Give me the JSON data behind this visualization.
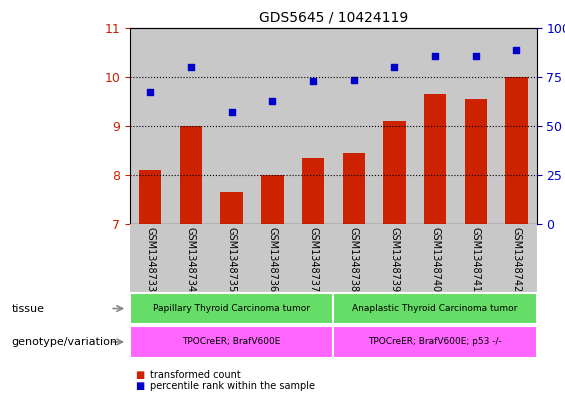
{
  "title": "GDS5645 / 10424119",
  "samples": [
    "GSM1348733",
    "GSM1348734",
    "GSM1348735",
    "GSM1348736",
    "GSM1348737",
    "GSM1348738",
    "GSM1348739",
    "GSM1348740",
    "GSM1348741",
    "GSM1348742"
  ],
  "bar_values": [
    8.1,
    9.0,
    7.65,
    8.0,
    8.35,
    8.45,
    9.1,
    9.65,
    9.55,
    10.0
  ],
  "scatter_values": [
    9.68,
    10.2,
    9.28,
    9.5,
    9.92,
    9.93,
    10.2,
    10.42,
    10.42,
    10.55
  ],
  "bar_color": "#cc2200",
  "scatter_color": "#0000cc",
  "ylim_left": [
    7,
    11
  ],
  "ylim_right": [
    0,
    100
  ],
  "yticks_left": [
    7,
    8,
    9,
    10,
    11
  ],
  "yticks_right": [
    0,
    25,
    50,
    75,
    100
  ],
  "col_bg_color": "#c8c8c8",
  "tissue_groups": [
    {
      "label": "Papillary Thyroid Carcinoma tumor",
      "start": 0,
      "end": 4,
      "color": "#66dd66"
    },
    {
      "label": "Anaplastic Thyroid Carcinoma tumor",
      "start": 5,
      "end": 9,
      "color": "#66dd66"
    }
  ],
  "genotype_groups": [
    {
      "label": "TPOCreER; BrafV600E",
      "start": 0,
      "end": 4,
      "color": "#ff66ff"
    },
    {
      "label": "TPOCreER; BrafV600E; p53 -/-",
      "start": 5,
      "end": 9,
      "color": "#ff66ff"
    }
  ],
  "tissue_label": "tissue",
  "genotype_label": "genotype/variation",
  "legend_bar_label": "transformed count",
  "legend_scatter_label": "percentile rank within the sample"
}
